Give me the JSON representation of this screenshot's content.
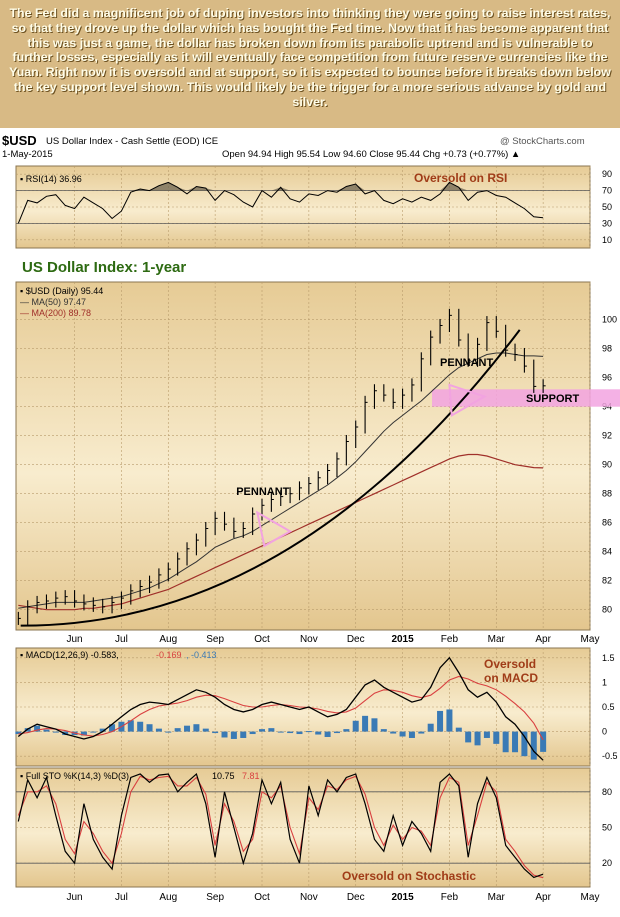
{
  "intro_text": "The Fed did a magnificent job of duping investors into thinking they were going to raise interest rates, so that they drove up the dollar which has bought the Fed time. Now that it has become apparent that this was just a game, the dollar has broken down from its parabolic uptrend and is vulnerable to further losses, especially as it will eventually face competition from future reserve currencies like the Yuan. Right now it is oversold and at support, so it is expected to bounce before it breaks down below the key support level shown. This would likely be the trigger for a more serious advance by gold and silver.",
  "header": {
    "symbol": "$USD",
    "name": "US Dollar Index - Cash Settle (EOD) ICE",
    "credit": "@ StockCharts.com",
    "date": "1-May-2015",
    "ohlc": "Open 94.94 High 95.54 Low 94.60 Close 95.44 Chg +0.73 (+0.77%) ▲"
  },
  "colors": {
    "panel_bg": "#f6e7c4",
    "panel_bg_dark": "#e8cf9b",
    "price": "#000000",
    "ma50": "#333333",
    "ma200": "#a0302a",
    "annotation_pink": "#f2a3e0",
    "macd_signal": "#d94040",
    "histogram": "#3a7ab5",
    "annotation_text": "#a03c18",
    "title_green": "#2d6a12"
  },
  "chart_data": [
    {
      "panel": "rsi",
      "type": "line",
      "legend": "RSI(14) 36.96",
      "annotation": "Oversold on RSI",
      "y_ticks": [
        10,
        30,
        50,
        70,
        90
      ],
      "ylim": [
        0,
        100
      ],
      "x_start_month": 4.8,
      "x": [
        4.8,
        5.0,
        5.2,
        5.4,
        5.6,
        5.8,
        6.0,
        6.2,
        6.4,
        6.6,
        6.8,
        7.0,
        7.2,
        7.4,
        7.6,
        7.8,
        8.0,
        8.2,
        8.4,
        8.6,
        8.8,
        9.0,
        9.2,
        9.4,
        9.6,
        9.8,
        10.0,
        10.2,
        10.4,
        10.6,
        10.8,
        11.0,
        11.2,
        11.4,
        11.6,
        11.8,
        12.0,
        12.2,
        12.4,
        12.6,
        12.8,
        13.0,
        13.2,
        13.4,
        13.6,
        13.8,
        14.0,
        14.2,
        14.4,
        14.6,
        14.8,
        15.0,
        15.2,
        15.4,
        15.6,
        15.8,
        16.0
      ],
      "values": [
        30,
        58,
        55,
        63,
        65,
        52,
        48,
        62,
        55,
        48,
        36,
        45,
        68,
        72,
        70,
        76,
        80,
        74,
        66,
        75,
        73,
        58,
        70,
        65,
        56,
        50,
        70,
        62,
        74,
        60,
        56,
        66,
        64,
        70,
        68,
        75,
        78,
        66,
        70,
        58,
        54,
        60,
        56,
        62,
        58,
        66,
        80,
        74,
        58,
        68,
        70,
        64,
        62,
        55,
        48,
        38,
        37
      ]
    },
    {
      "panel": "price",
      "type": "ohlc",
      "title": "US Dollar Index: 1-year",
      "legend": [
        "$USD (Daily) 95.44",
        "MA(50) 97.47",
        "MA(200) 89.78"
      ],
      "y_ticks": [
        80,
        82,
        84,
        86,
        88,
        90,
        92,
        94,
        96,
        98,
        100
      ],
      "ylim": [
        78.6,
        102.6
      ],
      "x_ticks": [
        "Jun",
        "Jul",
        "Aug",
        "Sep",
        "Oct",
        "Nov",
        "Dec",
        "2015",
        "Feb",
        "Mar",
        "Apr",
        "May",
        "Jun"
      ],
      "x": [
        4.8,
        5.0,
        5.2,
        5.4,
        5.6,
        5.8,
        6.0,
        6.2,
        6.4,
        6.6,
        6.8,
        7.0,
        7.2,
        7.4,
        7.6,
        7.8,
        8.0,
        8.2,
        8.4,
        8.6,
        8.8,
        9.0,
        9.2,
        9.4,
        9.6,
        9.8,
        10.0,
        10.2,
        10.4,
        10.6,
        10.8,
        11.0,
        11.2,
        11.4,
        11.6,
        11.8,
        12.0,
        12.2,
        12.4,
        12.6,
        12.8,
        13.0,
        13.2,
        13.4,
        13.6,
        13.8,
        14.0,
        14.2,
        14.4,
        14.6,
        14.8,
        15.0,
        15.2,
        15.4,
        15.6,
        15.8,
        16.0
      ],
      "close": [
        79.4,
        80.2,
        80.5,
        80.6,
        80.8,
        80.9,
        80.6,
        80.4,
        80.3,
        80.2,
        80.5,
        80.8,
        81.3,
        81.6,
        81.9,
        82.4,
        82.8,
        83.5,
        84.2,
        84.8,
        85.6,
        86.3,
        85.9,
        85.4,
        85.6,
        86.6,
        87.2,
        87.6,
        87.8,
        88.0,
        88.4,
        88.7,
        89.1,
        89.6,
        90.4,
        91.6,
        92.6,
        94.3,
        95.1,
        94.8,
        94.3,
        94.8,
        95.5,
        97.3,
        98.8,
        99.6,
        100.3,
        98.6,
        97.2,
        98.3,
        99.8,
        99.2,
        97.9,
        97.6,
        96.8,
        95.4,
        95.44
      ],
      "ma50": [
        80.1,
        80.2,
        80.3,
        80.4,
        80.5,
        80.5,
        80.5,
        80.5,
        80.6,
        80.7,
        80.8,
        80.9,
        81.1,
        81.3,
        81.5,
        81.8,
        82.1,
        82.5,
        82.9,
        83.3,
        83.8,
        84.3,
        84.6,
        84.9,
        85.1,
        85.4,
        85.8,
        86.2,
        86.6,
        87.0,
        87.4,
        87.8,
        88.2,
        88.6,
        89.1,
        89.6,
        90.2,
        90.9,
        91.6,
        92.3,
        92.9,
        93.4,
        93.9,
        94.4,
        95.0,
        95.6,
        96.2,
        96.7,
        97.0,
        97.3,
        97.6,
        97.7,
        97.7,
        97.6,
        97.5,
        97.5,
        97.47
      ],
      "ma200": [
        80.3,
        80.2,
        80.1,
        80.0,
        80.0,
        80.0,
        80.0,
        80.1,
        80.1,
        80.2,
        80.3,
        80.4,
        80.6,
        80.8,
        81.0,
        81.2,
        81.4,
        81.7,
        82.0,
        82.3,
        82.6,
        82.9,
        83.2,
        83.5,
        83.8,
        84.1,
        84.4,
        84.7,
        85.0,
        85.3,
        85.6,
        85.9,
        86.2,
        86.5,
        86.8,
        87.1,
        87.4,
        87.7,
        88.0,
        88.3,
        88.6,
        88.9,
        89.2,
        89.5,
        89.8,
        90.1,
        90.4,
        90.6,
        90.7,
        90.7,
        90.6,
        90.4,
        90.2,
        90.0,
        89.9,
        89.8,
        89.78
      ],
      "annotations": {
        "pennant_1": "PENNANT",
        "pennant_2": "PENNANT",
        "support": "SUPPORT",
        "support_level": [
          94.0,
          95.2
        ],
        "trendline_from": [
          4.85,
          78.9
        ],
        "trendline_to": [
          15.5,
          99.3
        ]
      }
    },
    {
      "panel": "macd",
      "type": "line",
      "legend": [
        "MACD(12,26,9)",
        "-0.583",
        "-0.169",
        "-0.413"
      ],
      "annotation": [
        "Oversold",
        "on MACD"
      ],
      "y_ticks": [
        -0.5,
        0.0,
        0.5,
        1.0,
        1.5
      ],
      "ylim": [
        -0.7,
        1.7
      ],
      "x": [
        4.8,
        5.0,
        5.2,
        5.4,
        5.6,
        5.8,
        6.0,
        6.2,
        6.4,
        6.6,
        6.8,
        7.0,
        7.2,
        7.4,
        7.6,
        7.8,
        8.0,
        8.2,
        8.4,
        8.6,
        8.8,
        9.0,
        9.2,
        9.4,
        9.6,
        9.8,
        10.0,
        10.2,
        10.4,
        10.6,
        10.8,
        11.0,
        11.2,
        11.4,
        11.6,
        11.8,
        12.0,
        12.2,
        12.4,
        12.6,
        12.8,
        13.0,
        13.2,
        13.4,
        13.6,
        13.8,
        14.0,
        14.2,
        14.4,
        14.6,
        14.8,
        15.0,
        15.2,
        15.4,
        15.6,
        15.8,
        16.0
      ],
      "macd": [
        -0.1,
        0.05,
        0.15,
        0.1,
        0.05,
        -0.05,
        -0.1,
        -0.15,
        -0.1,
        0.0,
        0.15,
        0.3,
        0.45,
        0.55,
        0.6,
        0.58,
        0.55,
        0.65,
        0.75,
        0.85,
        0.8,
        0.7,
        0.55,
        0.45,
        0.4,
        0.45,
        0.55,
        0.6,
        0.55,
        0.5,
        0.45,
        0.5,
        0.4,
        0.3,
        0.35,
        0.45,
        0.7,
        0.95,
        1.05,
        0.9,
        0.8,
        0.7,
        0.6,
        0.65,
        0.9,
        1.3,
        1.5,
        1.2,
        0.85,
        0.7,
        0.8,
        0.6,
        0.3,
        0.15,
        -0.1,
        -0.4,
        -0.583
      ],
      "signal": [
        -0.05,
        -0.02,
        0.03,
        0.06,
        0.05,
        0.02,
        -0.03,
        -0.07,
        -0.09,
        -0.06,
        0.0,
        0.1,
        0.22,
        0.35,
        0.45,
        0.52,
        0.55,
        0.58,
        0.63,
        0.7,
        0.74,
        0.73,
        0.67,
        0.6,
        0.53,
        0.5,
        0.5,
        0.53,
        0.55,
        0.53,
        0.5,
        0.49,
        0.46,
        0.41,
        0.38,
        0.4,
        0.48,
        0.63,
        0.78,
        0.85,
        0.84,
        0.8,
        0.73,
        0.69,
        0.74,
        0.88,
        1.05,
        1.12,
        1.07,
        0.98,
        0.93,
        0.85,
        0.72,
        0.57,
        0.4,
        0.17,
        -0.169
      ],
      "histogram": [
        -0.05,
        0.07,
        0.12,
        0.04,
        0.0,
        -0.07,
        -0.07,
        -0.08,
        -0.01,
        0.06,
        0.15,
        0.2,
        0.23,
        0.2,
        0.15,
        0.06,
        0.0,
        0.07,
        0.12,
        0.15,
        0.06,
        -0.03,
        -0.12,
        -0.15,
        -0.13,
        -0.05,
        0.05,
        0.07,
        0.0,
        -0.03,
        -0.05,
        0.01,
        -0.06,
        -0.11,
        -0.03,
        0.05,
        0.22,
        0.32,
        0.27,
        0.05,
        -0.04,
        -0.1,
        -0.13,
        -0.04,
        0.16,
        0.42,
        0.45,
        0.08,
        -0.22,
        -0.28,
        -0.13,
        -0.25,
        -0.42,
        -0.42,
        -0.5,
        -0.57,
        -0.413
      ]
    },
    {
      "panel": "stochastic",
      "type": "line",
      "legend": [
        "Full STO %K(14,3) %D(3)",
        "10.75",
        "7.81"
      ],
      "annotation": "Oversold on Stochastic",
      "y_ticks": [
        20,
        50,
        80
      ],
      "ylim": [
        0,
        100
      ],
      "x": [
        4.8,
        5.0,
        5.2,
        5.4,
        5.6,
        5.8,
        6.0,
        6.2,
        6.4,
        6.6,
        6.8,
        7.0,
        7.2,
        7.4,
        7.6,
        7.8,
        8.0,
        8.2,
        8.4,
        8.6,
        8.8,
        9.0,
        9.2,
        9.4,
        9.6,
        9.8,
        10.0,
        10.2,
        10.4,
        10.6,
        10.8,
        11.0,
        11.2,
        11.4,
        11.6,
        11.8,
        12.0,
        12.2,
        12.4,
        12.6,
        12.8,
        13.0,
        13.2,
        13.4,
        13.6,
        13.8,
        14.0,
        14.2,
        14.4,
        14.6,
        14.8,
        15.0,
        15.2,
        15.4,
        15.6,
        15.8,
        16.0
      ],
      "k": [
        55,
        90,
        75,
        92,
        60,
        30,
        20,
        70,
        40,
        25,
        15,
        60,
        92,
        95,
        88,
        94,
        95,
        80,
        88,
        95,
        70,
        25,
        80,
        50,
        20,
        45,
        90,
        70,
        88,
        40,
        20,
        85,
        60,
        90,
        80,
        92,
        95,
        70,
        40,
        30,
        60,
        35,
        55,
        45,
        30,
        88,
        95,
        85,
        25,
        70,
        92,
        75,
        35,
        25,
        15,
        8,
        10.75
      ],
      "d": [
        60,
        80,
        80,
        85,
        70,
        40,
        28,
        55,
        45,
        30,
        20,
        45,
        80,
        93,
        90,
        92,
        93,
        85,
        85,
        92,
        78,
        35,
        70,
        55,
        30,
        40,
        80,
        75,
        85,
        50,
        28,
        75,
        65,
        85,
        82,
        90,
        93,
        78,
        50,
        35,
        52,
        40,
        50,
        47,
        35,
        75,
        92,
        88,
        35,
        60,
        88,
        80,
        40,
        30,
        18,
        10,
        7.81
      ]
    }
  ]
}
